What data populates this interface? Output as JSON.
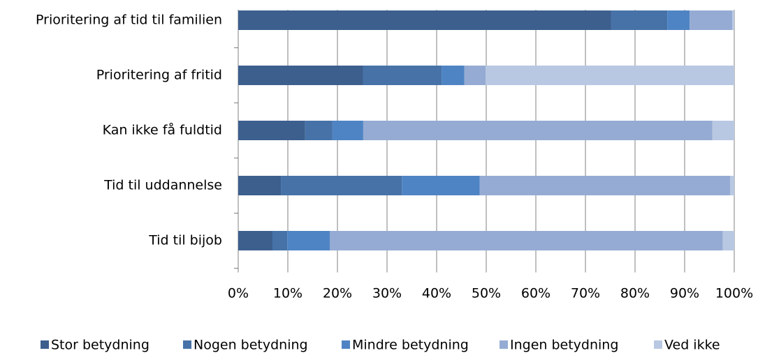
{
  "chart_data": {
    "type": "stacked-barh",
    "categories": [
      "Prioritering af tid til familien",
      "Prioritering af fritid",
      "Kan ikke få fuldtid",
      "Tid til uddannelse",
      "Tid til bijob"
    ],
    "series": [
      {
        "name": "Stor betydning",
        "color": "#3c5f8e",
        "values": [
          75.2,
          25.2,
          13.5,
          8.6,
          6.9
        ]
      },
      {
        "name": "Nogen betydning",
        "color": "#4672a8",
        "values": [
          11.3,
          15.8,
          5.5,
          24.4,
          3.0
        ]
      },
      {
        "name": "Mindre betydning",
        "color": "#4f84c4",
        "values": [
          4.5,
          4.6,
          6.2,
          15.7,
          8.6
        ]
      },
      {
        "name": "Ingen betydning",
        "color": "#95abd3",
        "values": [
          8.6,
          4.3,
          70.4,
          50.5,
          79.2
        ]
      },
      {
        "name": "Ved ikke",
        "color": "#b9c8e2",
        "values": [
          0.4,
          50.1,
          4.4,
          0.8,
          2.3
        ]
      }
    ],
    "xlim": [
      0,
      100
    ],
    "xticks": [
      {
        "value": 0,
        "label": "0%"
      },
      {
        "value": 10,
        "label": "10%"
      },
      {
        "value": 20,
        "label": "20%"
      },
      {
        "value": 30,
        "label": "30%"
      },
      {
        "value": 40,
        "label": "40%"
      },
      {
        "value": 50,
        "label": "50%"
      },
      {
        "value": 60,
        "label": "60%"
      },
      {
        "value": 70,
        "label": "70%"
      },
      {
        "value": 80,
        "label": "80%"
      },
      {
        "value": 90,
        "label": "90%"
      },
      {
        "value": 100,
        "label": "100%"
      }
    ],
    "grid": true,
    "legend": "bottom"
  }
}
